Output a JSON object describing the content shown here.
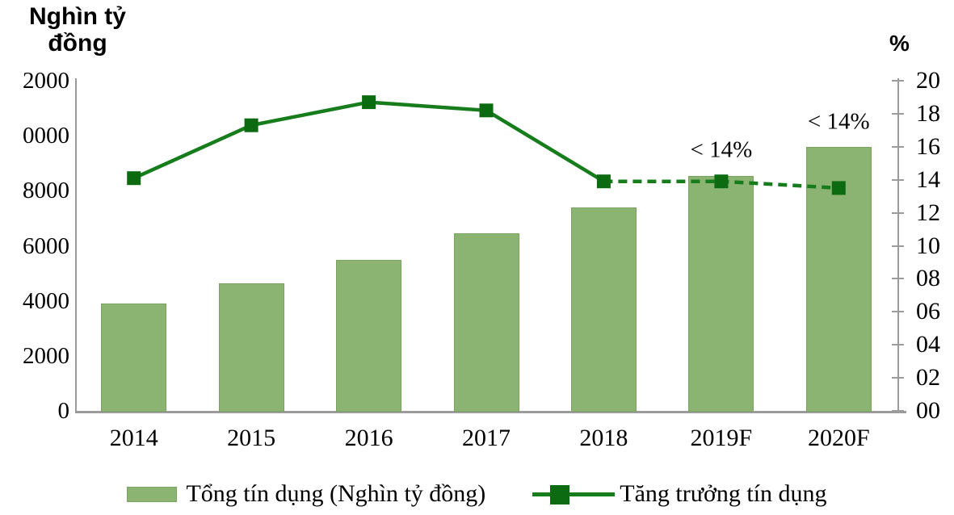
{
  "left_axis_title": {
    "line1": "Nghìn tỷ",
    "line2": "đồng"
  },
  "right_axis_title": "%",
  "chart_data": {
    "type": "bar+line",
    "categories": [
      "2014",
      "2015",
      "2016",
      "2017",
      "2018",
      "2019F",
      "2020F"
    ],
    "series": [
      {
        "name": "Tổng tín dụng (Nghìn tỷ đồng)",
        "type": "bar",
        "axis": "left",
        "values": [
          3900,
          4650,
          5500,
          6450,
          7400,
          8550,
          9600
        ],
        "color": "#8bb473"
      },
      {
        "name": "Tăng trưởng tín dụng",
        "type": "line",
        "axis": "right",
        "values": [
          14.1,
          17.3,
          18.7,
          18.2,
          13.9,
          13.9,
          13.5
        ],
        "color": "#177d1c",
        "marker": "square",
        "solid_segment_end_index": 4,
        "dashed_segment_start_index": 4
      }
    ],
    "left_axis": {
      "min": 0,
      "max": 12000,
      "tick_values": [
        12000,
        10000,
        8000,
        6000,
        4000,
        2000,
        0
      ],
      "tick_labels_displayed": [
        "2000",
        "0000",
        "8000",
        "6000",
        "4000",
        "2000",
        "0"
      ]
    },
    "right_axis": {
      "min": 0,
      "max": 20,
      "tick_values": [
        20,
        18,
        16,
        14,
        12,
        10,
        8,
        6,
        4,
        2,
        0
      ],
      "tick_labels_displayed": [
        "20",
        "18",
        "16",
        "14",
        "12",
        "10",
        "08",
        "06",
        "04",
        "02",
        "00"
      ]
    },
    "annotations": [
      {
        "text": "< 14%",
        "category": "2019F",
        "category_index": 5,
        "anchor_right_axis_value": 15.8
      },
      {
        "text": "< 14%",
        "category": "2020F",
        "category_index": 6,
        "anchor_right_axis_value": 17.5
      }
    ],
    "legend_position": "bottom",
    "grid": false
  },
  "legend": {
    "items": [
      {
        "label": "Tổng tín dụng (Nghìn tỷ đồng)",
        "swatch": "bar",
        "color": "#8bb473"
      },
      {
        "label": "Tăng trưởng tín dụng",
        "swatch": "line-with-square-marker",
        "color": "#177d1c"
      }
    ]
  },
  "colors": {
    "bar_fill": "#8bb473",
    "line": "#177d1c",
    "marker": "#0c6a10",
    "axis": "#9b9b9b",
    "text": "#000000",
    "background": "#ffffff"
  }
}
